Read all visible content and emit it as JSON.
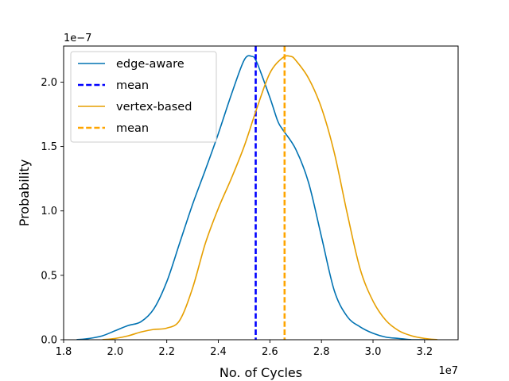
{
  "chart_data": {
    "type": "line",
    "xlabel": "No. of Cycles",
    "ylabel": "Probability",
    "x_offset_label": "1e7",
    "y_offset_label": "1e−7",
    "x_scale_factor": 10000000,
    "y_scale_factor": 1e-07,
    "xlim": [
      1.8,
      3.33
    ],
    "ylim": [
      0.0,
      2.28
    ],
    "x_ticks": [
      1.8,
      2.0,
      2.2,
      2.4,
      2.6,
      2.8,
      3.0,
      3.2
    ],
    "x_tick_labels": [
      "1.8",
      "2.0",
      "2.2",
      "2.4",
      "2.6",
      "2.8",
      "3.0",
      "3.2"
    ],
    "y_ticks": [
      0.0,
      0.5,
      1.0,
      1.5,
      2.0
    ],
    "y_tick_labels": [
      "0.0",
      "0.5",
      "1.0",
      "1.5",
      "2.0"
    ],
    "grid": false,
    "legend_position": "top-left",
    "series": [
      {
        "name": "edge-aware",
        "kind": "density",
        "color": "#0072b2",
        "x": [
          1.85,
          1.9,
          1.95,
          2.0,
          2.05,
          2.1,
          2.15,
          2.2,
          2.25,
          2.3,
          2.35,
          2.4,
          2.45,
          2.5,
          2.53,
          2.55,
          2.6,
          2.63,
          2.65,
          2.7,
          2.75,
          2.8,
          2.85,
          2.9,
          2.95,
          3.0,
          3.05,
          3.1,
          3.15,
          3.2
        ],
        "y": [
          0.0,
          0.01,
          0.03,
          0.07,
          0.11,
          0.14,
          0.24,
          0.45,
          0.75,
          1.05,
          1.32,
          1.6,
          1.9,
          2.17,
          2.2,
          2.15,
          1.88,
          1.7,
          1.63,
          1.48,
          1.22,
          0.8,
          0.38,
          0.18,
          0.1,
          0.05,
          0.02,
          0.01,
          0.0,
          0.0
        ]
      },
      {
        "name": "mean",
        "kind": "vline",
        "color": "#0000ff",
        "x": 2.545
      },
      {
        "name": "vertex-based",
        "kind": "density",
        "color": "#e69f00",
        "x": [
          1.95,
          2.0,
          2.05,
          2.1,
          2.15,
          2.2,
          2.25,
          2.3,
          2.35,
          2.4,
          2.45,
          2.5,
          2.55,
          2.6,
          2.65,
          2.68,
          2.7,
          2.75,
          2.8,
          2.85,
          2.9,
          2.95,
          3.0,
          3.05,
          3.1,
          3.15,
          3.2,
          3.25
        ],
        "y": [
          0.0,
          0.01,
          0.03,
          0.06,
          0.08,
          0.09,
          0.15,
          0.4,
          0.75,
          1.02,
          1.25,
          1.5,
          1.8,
          2.07,
          2.19,
          2.2,
          2.17,
          2.03,
          1.8,
          1.45,
          0.98,
          0.55,
          0.3,
          0.15,
          0.07,
          0.03,
          0.01,
          0.0
        ]
      },
      {
        "name": "mean",
        "kind": "vline",
        "color": "#ffa500",
        "x": 2.657
      }
    ]
  }
}
